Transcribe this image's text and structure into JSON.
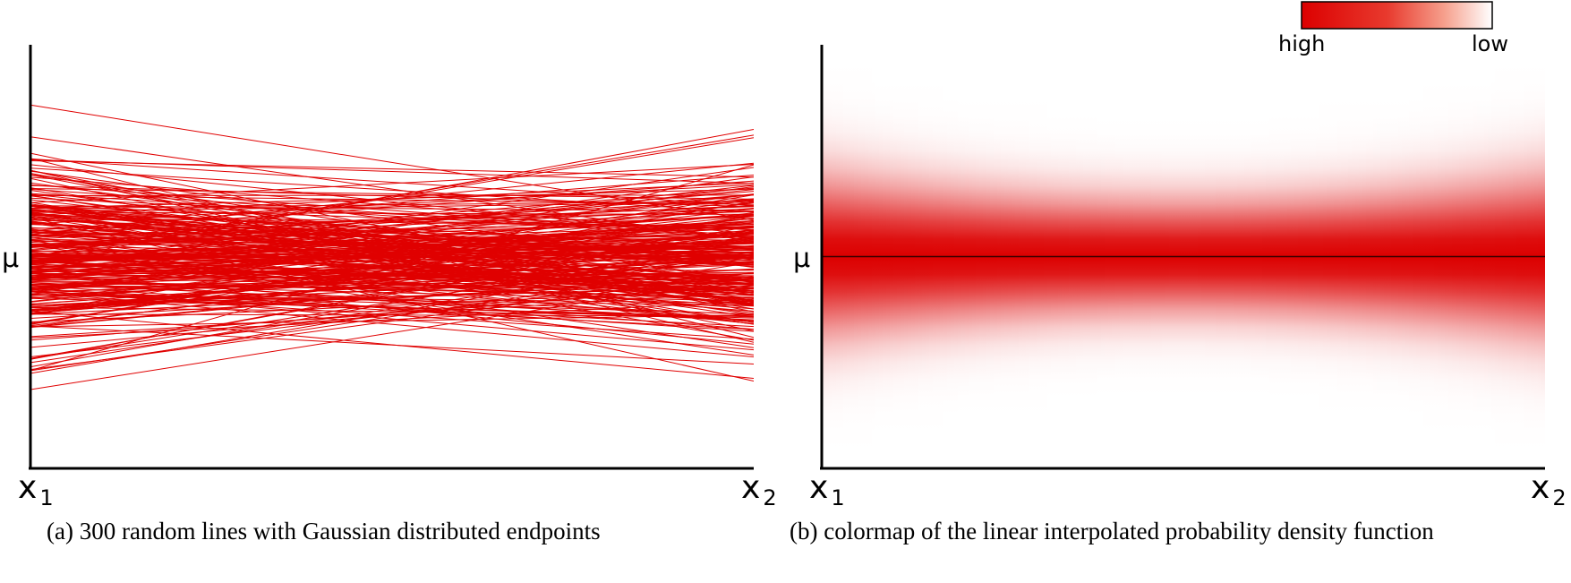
{
  "chart_data": [
    {
      "type": "line",
      "caption": "(a)  300 random lines with Gaussian distributed endpoints",
      "x_tick_labels": [
        "x",
        "x"
      ],
      "x_tick_subscripts": [
        "1",
        "2"
      ],
      "y_tick_label": "µ",
      "line_count": 300,
      "endpoint_distribution": "Gaussian",
      "line_color": "#e00000",
      "y_mean": 0,
      "y_stddev": 1,
      "ylim": [
        -4.5,
        4.5
      ],
      "grid": false
    },
    {
      "type": "heatmap",
      "caption": "(b)  colormap of the linear interpolated probability density function",
      "x_tick_labels": [
        "x",
        "x"
      ],
      "x_tick_subscripts": [
        "1",
        "2"
      ],
      "y_tick_label": "µ",
      "colorbar": {
        "high_label": "high",
        "low_label": "low",
        "placement": "top-right"
      },
      "colors": {
        "high": "#dc0000",
        "low": "#ffffff"
      },
      "mean_line": true,
      "y_mean": 0,
      "endpoint_stddev": 1.15,
      "midpoint_stddev": 0.8,
      "ylim": [
        -4.5,
        4.5
      ],
      "grid": false
    }
  ]
}
